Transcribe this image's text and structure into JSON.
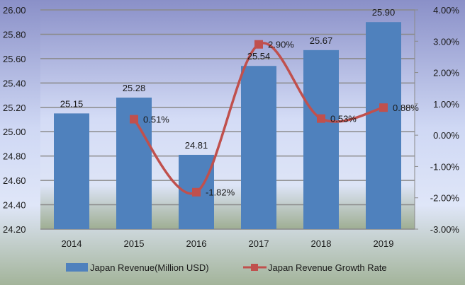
{
  "chart_data": {
    "type": "bar+line",
    "categories": [
      "2014",
      "2015",
      "2016",
      "2017",
      "2018",
      "2019"
    ],
    "series": [
      {
        "name": "Japan Revenue(Million USD)",
        "type": "bar",
        "axis": "left",
        "values": [
          25.15,
          25.28,
          24.81,
          25.54,
          25.67,
          25.9
        ],
        "labels": [
          "25.15",
          "25.28",
          "24.81",
          "25.54",
          "25.67",
          "25.90"
        ],
        "color": "#4f81bd"
      },
      {
        "name": "Japan Revenue Growth Rate",
        "type": "line",
        "axis": "right",
        "smooth": true,
        "values": [
          null,
          0.51,
          -1.82,
          2.9,
          0.53,
          0.88
        ],
        "labels": [
          "",
          "0.51%",
          "-1.82%",
          "2.90%",
          "0.53%",
          "0.88%"
        ],
        "color": "#c0504d"
      }
    ],
    "left_axis": {
      "range": [
        24.2,
        26.0
      ],
      "ticks": [
        "24.20",
        "24.40",
        "24.60",
        "24.80",
        "25.00",
        "25.20",
        "25.40",
        "25.60",
        "25.80",
        "26.00"
      ]
    },
    "right_axis": {
      "range": [
        -3,
        4
      ],
      "ticks": [
        "-3.00%",
        "-2.00%",
        "-1.00%",
        "0.00%",
        "1.00%",
        "2.00%",
        "3.00%",
        "4.00%"
      ]
    },
    "grid": true,
    "legend": "bottom"
  }
}
